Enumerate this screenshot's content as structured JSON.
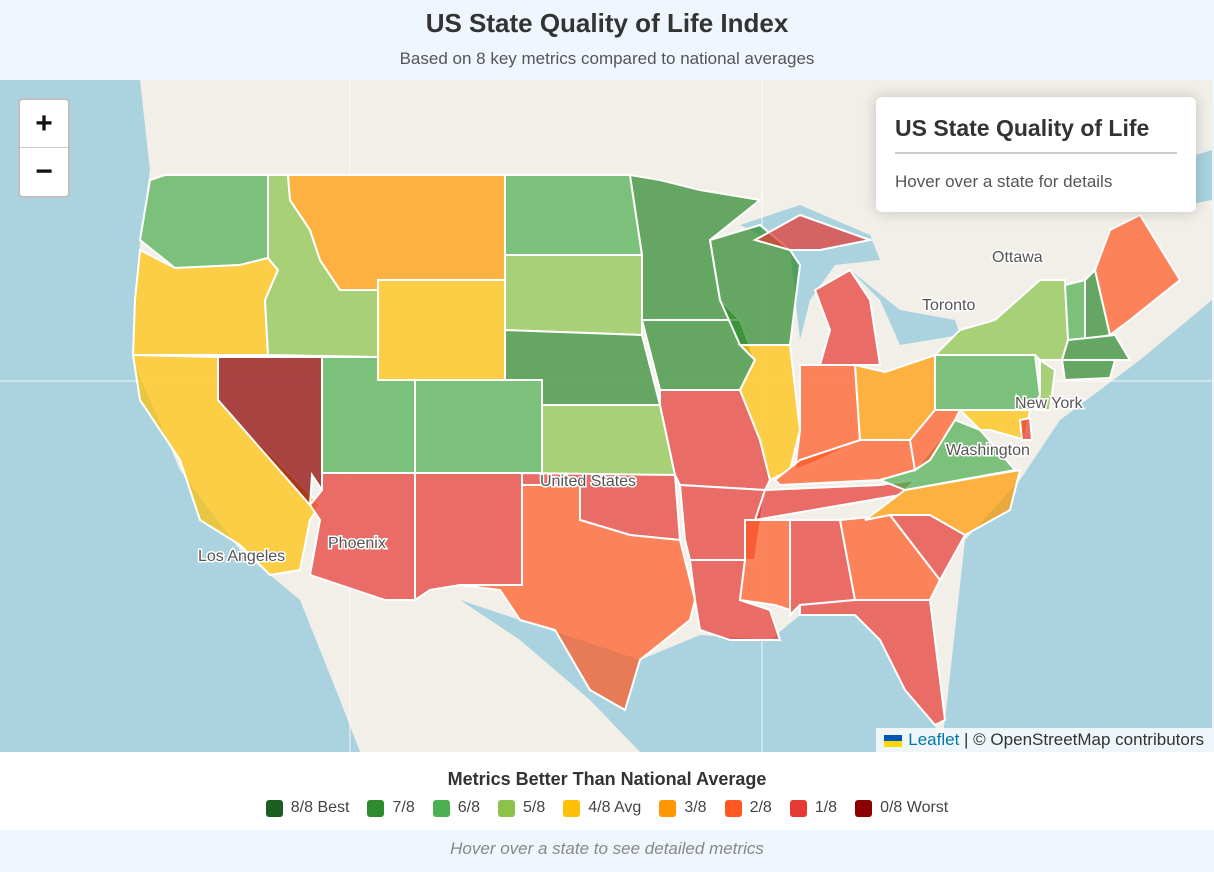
{
  "header": {
    "title": "US State Quality of Life Index",
    "subtitle": "Based on 8 key metrics compared to national averages"
  },
  "zoom": {
    "in": "+",
    "out": "−"
  },
  "info": {
    "title": "US State Quality of Life",
    "text": "Hover over a state for details"
  },
  "attribution": {
    "leaflet": "Leaflet",
    "rest": "| © OpenStreetMap contributors"
  },
  "map_labels": {
    "ottawa": "Ottawa",
    "toronto": "Toronto",
    "new_york": "New York",
    "washington": "Washington",
    "los_angeles": "Los Angeles",
    "phoenix": "Phoenix",
    "united_states": "United States"
  },
  "legend": {
    "title": "Metrics Better Than National Average",
    "items": [
      {
        "label": "8/8 Best",
        "color": "#1b5e20"
      },
      {
        "label": "7/8",
        "color": "#2e8b2e"
      },
      {
        "label": "6/8",
        "color": "#4caf50"
      },
      {
        "label": "5/8",
        "color": "#8bc34a"
      },
      {
        "label": "4/8 Avg",
        "color": "#ffc107"
      },
      {
        "label": "3/8",
        "color": "#ff9800"
      },
      {
        "label": "2/8",
        "color": "#ff5722"
      },
      {
        "label": "1/8",
        "color": "#e53935"
      },
      {
        "label": "0/8 Worst",
        "color": "#8b0000"
      }
    ]
  },
  "footer": "Hover over a state to see detailed metrics",
  "states": {
    "WA": 6,
    "OR": 4,
    "CA": 4,
    "NV": 0,
    "ID": 5,
    "MT": 3,
    "WY": 4,
    "UT": 6,
    "CO": 6,
    "AZ": 1,
    "NM": 1,
    "ND": 6,
    "SD": 5,
    "NE": 7,
    "KS": 5,
    "OK": 1,
    "TX": 2,
    "MN": 7,
    "IA": 7,
    "MO": 1,
    "AR": 1,
    "LA": 1,
    "WI": 7,
    "IL": 4,
    "MI": 1,
    "IN": 2,
    "OH": 3,
    "KY": 2,
    "TN": 1,
    "MS": 2,
    "AL": 1,
    "GA": 2,
    "FL": 1,
    "SC": 1,
    "NC": 3,
    "VA": 6,
    "WV": 2,
    "PA": 6,
    "NY": 5,
    "MD": 4,
    "NJ": 5,
    "DE": 1,
    "VT": 6,
    "NH": 7,
    "ME": 2,
    "MA": 7,
    "CT": 7
  }
}
